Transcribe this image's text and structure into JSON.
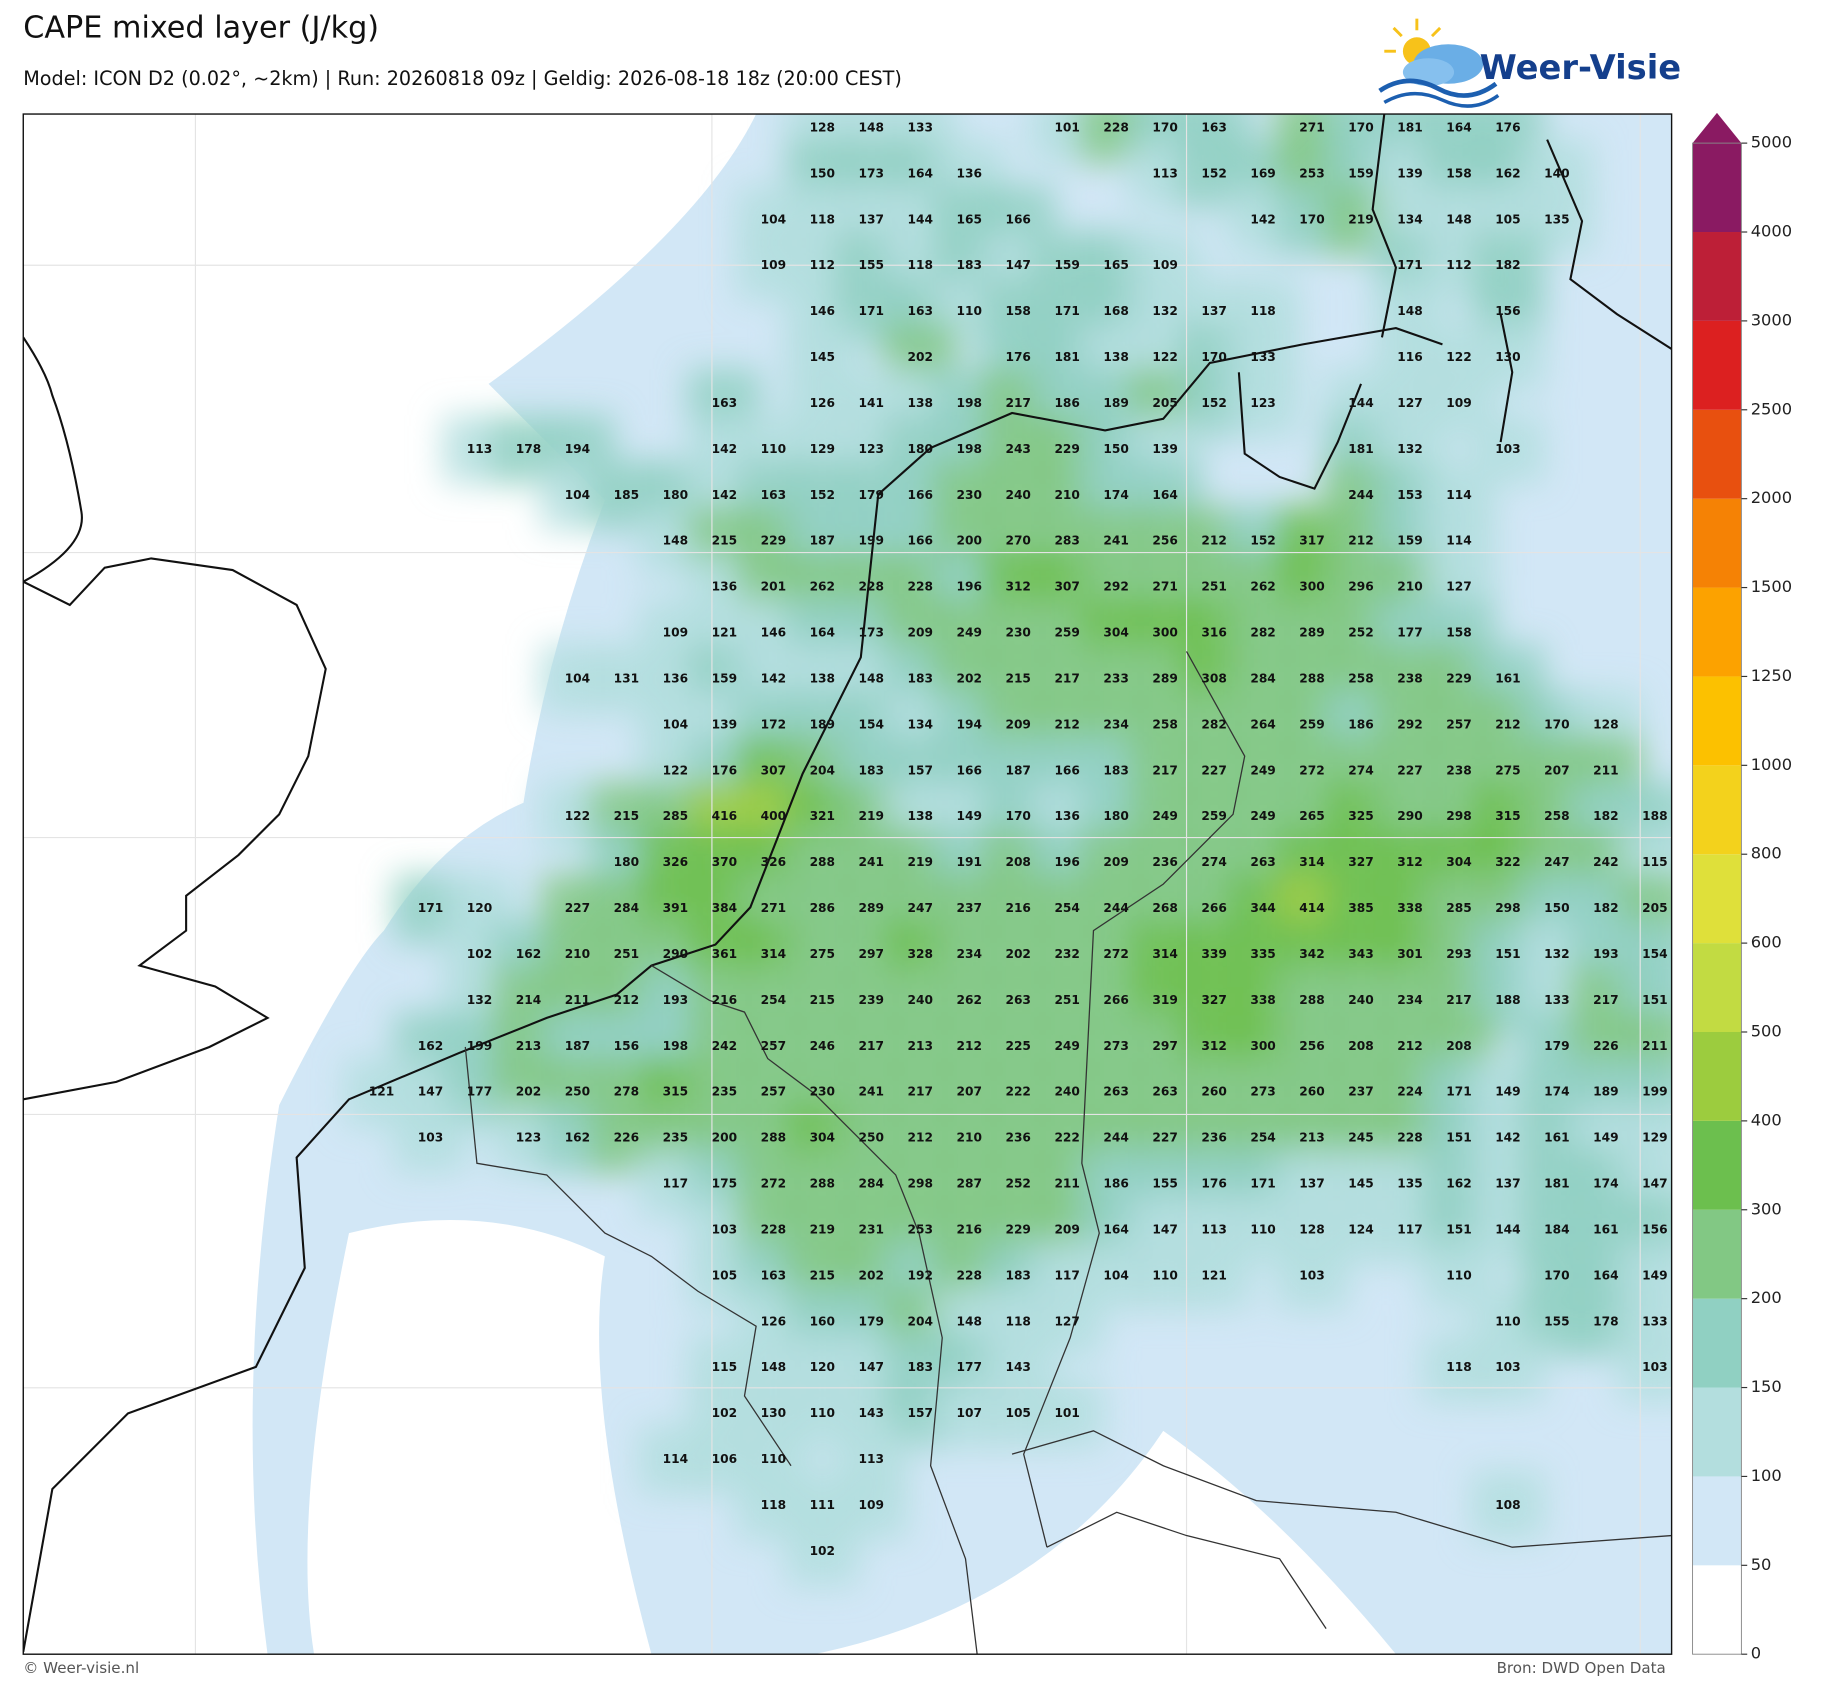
{
  "header": {
    "title": "CAPE mixed layer (J/kg)",
    "subtitle": "Model: ICON D2 (0.02°, ~2km)  |  Run: 20260818 09z  |  Geldig: 2026-08-18 18z (20:00 CEST)",
    "logo": "Weer-Visie"
  },
  "map": {
    "rows": [
      [
        null,
        null,
        null,
        null,
        null,
        null,
        null,
        null,
        null,
        128,
        148,
        133,
        null,
        null,
        101,
        228,
        170,
        163,
        null,
        271,
        170,
        181,
        164,
        176,
        null,
        null,
        null
      ],
      [
        null,
        null,
        null,
        null,
        null,
        null,
        null,
        null,
        null,
        150,
        173,
        164,
        136,
        null,
        null,
        null,
        113,
        152,
        169,
        253,
        159,
        139,
        158,
        162,
        140,
        null,
        null
      ],
      [
        null,
        null,
        null,
        null,
        null,
        null,
        null,
        null,
        104,
        118,
        137,
        144,
        165,
        166,
        null,
        null,
        null,
        null,
        142,
        170,
        219,
        134,
        148,
        105,
        135,
        null,
        null
      ],
      [
        null,
        null,
        null,
        null,
        null,
        null,
        null,
        null,
        109,
        112,
        155,
        118,
        183,
        147,
        159,
        165,
        109,
        null,
        null,
        null,
        null,
        171,
        112,
        182,
        null,
        null,
        null
      ],
      [
        null,
        null,
        null,
        null,
        null,
        null,
        null,
        null,
        null,
        146,
        171,
        163,
        110,
        158,
        171,
        168,
        132,
        137,
        118,
        null,
        null,
        148,
        null,
        156,
        null,
        null,
        null
      ],
      [
        null,
        null,
        null,
        null,
        null,
        null,
        null,
        null,
        null,
        145,
        null,
        202,
        null,
        176,
        181,
        138,
        122,
        170,
        133,
        null,
        null,
        116,
        122,
        130,
        null,
        null,
        null
      ],
      [
        null,
        null,
        null,
        null,
        null,
        null,
        null,
        163,
        null,
        126,
        141,
        138,
        198,
        217,
        186,
        189,
        205,
        152,
        123,
        null,
        144,
        127,
        109,
        null,
        null,
        null,
        null
      ],
      [
        null,
        null,
        113,
        178,
        194,
        null,
        null,
        142,
        110,
        129,
        123,
        180,
        198,
        243,
        229,
        150,
        139,
        null,
        null,
        null,
        181,
        132,
        null,
        103,
        null,
        null,
        null
      ],
      [
        null,
        null,
        null,
        null,
        104,
        185,
        180,
        142,
        163,
        152,
        179,
        166,
        230,
        240,
        210,
        174,
        164,
        null,
        null,
        null,
        244,
        153,
        114,
        null,
        null,
        null,
        null
      ],
      [
        null,
        null,
        null,
        null,
        null,
        null,
        148,
        215,
        229,
        187,
        199,
        166,
        200,
        270,
        283,
        241,
        256,
        212,
        152,
        317,
        212,
        159,
        114,
        null,
        null,
        null,
        null
      ],
      [
        null,
        null,
        null,
        null,
        null,
        null,
        null,
        136,
        201,
        262,
        228,
        228,
        196,
        312,
        307,
        292,
        271,
        251,
        262,
        300,
        296,
        210,
        127,
        null,
        null,
        null,
        null
      ],
      [
        null,
        null,
        null,
        null,
        null,
        null,
        109,
        121,
        146,
        164,
        173,
        209,
        249,
        230,
        259,
        304,
        300,
        316,
        282,
        289,
        252,
        177,
        158,
        null,
        null,
        null,
        null
      ],
      [
        null,
        null,
        null,
        null,
        104,
        131,
        136,
        159,
        142,
        138,
        148,
        183,
        202,
        215,
        217,
        233,
        289,
        308,
        284,
        288,
        258,
        238,
        229,
        161,
        null,
        null,
        null
      ],
      [
        null,
        null,
        null,
        null,
        null,
        null,
        104,
        139,
        172,
        189,
        154,
        134,
        194,
        209,
        212,
        234,
        258,
        282,
        264,
        259,
        186,
        292,
        257,
        212,
        170,
        128,
        null
      ],
      [
        null,
        null,
        null,
        null,
        null,
        null,
        122,
        176,
        307,
        204,
        183,
        157,
        166,
        187,
        166,
        183,
        217,
        227,
        249,
        272,
        274,
        227,
        238,
        275,
        207,
        211,
        null
      ],
      [
        null,
        null,
        null,
        null,
        122,
        215,
        285,
        416,
        400,
        321,
        219,
        138,
        149,
        170,
        136,
        180,
        249,
        259,
        249,
        265,
        325,
        290,
        298,
        315,
        258,
        182,
        188
      ],
      [
        null,
        null,
        null,
        null,
        null,
        180,
        326,
        370,
        326,
        288,
        241,
        219,
        191,
        208,
        196,
        209,
        236,
        274,
        263,
        314,
        327,
        312,
        304,
        322,
        247,
        242,
        115
      ],
      [
        null,
        171,
        120,
        null,
        227,
        284,
        391,
        384,
        271,
        286,
        289,
        247,
        237,
        216,
        254,
        244,
        268,
        266,
        344,
        414,
        385,
        338,
        285,
        298,
        150,
        182,
        205
      ],
      [
        null,
        null,
        102,
        162,
        210,
        251,
        290,
        361,
        314,
        275,
        297,
        328,
        234,
        202,
        232,
        272,
        314,
        339,
        335,
        342,
        343,
        301,
        293,
        151,
        132,
        193,
        154
      ],
      [
        null,
        null,
        132,
        214,
        211,
        212,
        193,
        216,
        254,
        215,
        239,
        240,
        262,
        263,
        251,
        266,
        319,
        327,
        338,
        288,
        240,
        234,
        217,
        188,
        133,
        217,
        151
      ],
      [
        null,
        162,
        199,
        213,
        187,
        156,
        198,
        242,
        257,
        246,
        217,
        213,
        212,
        225,
        249,
        273,
        297,
        312,
        300,
        256,
        208,
        212,
        208,
        null,
        179,
        226,
        211
      ],
      [
        121,
        147,
        177,
        202,
        250,
        278,
        315,
        235,
        257,
        230,
        241,
        217,
        207,
        222,
        240,
        263,
        263,
        260,
        273,
        260,
        237,
        224,
        171,
        149,
        174,
        189,
        199
      ],
      [
        null,
        103,
        null,
        123,
        162,
        226,
        235,
        200,
        288,
        304,
        250,
        212,
        210,
        236,
        222,
        244,
        227,
        236,
        254,
        213,
        245,
        228,
        151,
        142,
        161,
        149,
        129
      ],
      [
        null,
        null,
        null,
        null,
        null,
        null,
        117,
        175,
        272,
        288,
        284,
        298,
        287,
        252,
        211,
        186,
        155,
        176,
        171,
        137,
        145,
        135,
        162,
        137,
        181,
        174,
        147
      ],
      [
        null,
        null,
        null,
        null,
        null,
        null,
        null,
        103,
        228,
        219,
        231,
        253,
        216,
        229,
        209,
        164,
        147,
        113,
        110,
        128,
        124,
        117,
        151,
        144,
        184,
        161,
        156
      ],
      [
        null,
        null,
        null,
        null,
        null,
        null,
        null,
        105,
        163,
        215,
        202,
        192,
        228,
        183,
        117,
        104,
        110,
        121,
        null,
        103,
        null,
        null,
        110,
        null,
        170,
        164,
        149
      ],
      [
        null,
        null,
        null,
        null,
        null,
        null,
        null,
        null,
        126,
        160,
        179,
        204,
        148,
        118,
        127,
        null,
        null,
        null,
        null,
        null,
        null,
        null,
        null,
        110,
        155,
        178,
        133
      ],
      [
        null,
        null,
        null,
        null,
        null,
        null,
        null,
        115,
        148,
        120,
        147,
        183,
        177,
        143,
        null,
        null,
        null,
        null,
        null,
        null,
        null,
        null,
        118,
        103,
        null,
        null,
        103
      ],
      [
        null,
        null,
        null,
        null,
        null,
        null,
        null,
        102,
        130,
        110,
        143,
        157,
        107,
        105,
        101,
        null,
        null,
        null,
        null,
        null,
        null,
        null,
        null,
        null,
        null,
        null,
        null
      ],
      [
        null,
        null,
        null,
        null,
        null,
        null,
        114,
        106,
        110,
        null,
        113,
        null,
        null,
        null,
        null,
        null,
        null,
        null,
        null,
        null,
        null,
        null,
        null,
        null,
        null,
        null,
        null
      ],
      [
        null,
        null,
        null,
        null,
        null,
        null,
        null,
        null,
        118,
        111,
        109,
        null,
        null,
        null,
        null,
        null,
        null,
        null,
        null,
        null,
        null,
        null,
        null,
        108,
        null,
        null,
        null
      ],
      [
        null,
        null,
        null,
        null,
        null,
        null,
        null,
        null,
        null,
        102,
        null,
        null,
        null,
        null,
        null,
        null,
        null,
        null,
        null,
        null,
        null,
        null,
        null,
        null,
        null,
        null,
        null
      ]
    ]
  },
  "colorbar": {
    "levels": [
      0,
      50,
      100,
      150,
      200,
      300,
      400,
      500,
      600,
      800,
      1000,
      1250,
      1500,
      2000,
      2500,
      3000,
      4000,
      5000
    ],
    "colors": [
      "#ffffff",
      "#d2e7f6",
      "#b3dede",
      "#90d0c2",
      "#82c884",
      "#6cbf4e",
      "#9ccc3e",
      "#c2db42",
      "#dfe03a",
      "#f3d21c",
      "#fcc100",
      "#fca200",
      "#f58205",
      "#e8500f",
      "#dc2020",
      "#bd1f37",
      "#8a1a62"
    ]
  },
  "footer": {
    "left": "© Weer-visie.nl",
    "right": "Bron: DWD Open Data"
  }
}
